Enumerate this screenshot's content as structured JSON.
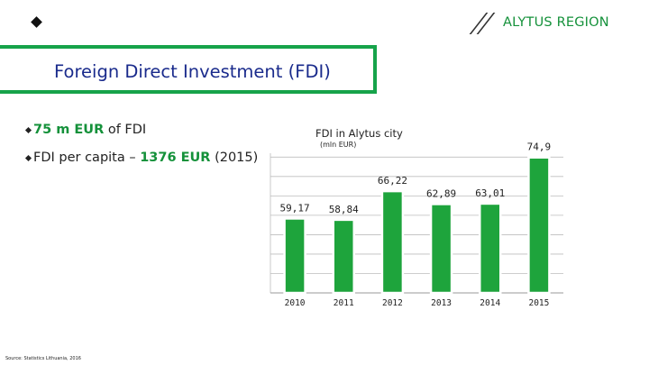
{
  "header": {
    "logo_text": "ALYTUS REGION",
    "brand_color": "#14913a",
    "title": "Foreign Direct Investment (FDI)"
  },
  "bullets": [
    {
      "highlight": "75 m EUR",
      "rest": " of FDI"
    },
    {
      "prefix": "FDI per capita – ",
      "highlight": "1376 EUR",
      "rest": " (2015)"
    }
  ],
  "source": "Source: Statistics Lithuania, 2016",
  "chart_data": {
    "type": "bar",
    "title": "FDI in Alytus city",
    "subtitle": "(mln EUR)",
    "categories": [
      "2010",
      "2011",
      "2012",
      "2013",
      "2014",
      "2015"
    ],
    "values": [
      59.17,
      58.84,
      66.22,
      62.89,
      63.01,
      74.9
    ],
    "value_labels": [
      "59,17",
      "58,84",
      "66,22",
      "62,89",
      "63,01",
      "74,9"
    ],
    "ylim": [
      40,
      76
    ],
    "grid": true,
    "bar_color": "#1ea43c"
  }
}
